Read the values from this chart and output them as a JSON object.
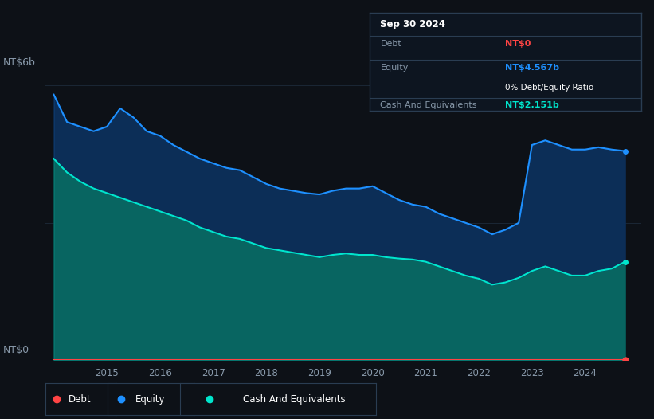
{
  "background_color": "#0d1117",
  "plot_bg_color": "#0d1117",
  "equity_color": "#1e90ff",
  "cash_color": "#00e5cc",
  "debt_color": "#ff4444",
  "grid_color": "#1e2d3d",
  "x_ticks": [
    2015,
    2016,
    2017,
    2018,
    2019,
    2020,
    2021,
    2022,
    2023,
    2024
  ],
  "years": [
    2014.0,
    2014.25,
    2014.5,
    2014.75,
    2015.0,
    2015.25,
    2015.5,
    2015.75,
    2016.0,
    2016.25,
    2016.5,
    2016.75,
    2017.0,
    2017.25,
    2017.5,
    2017.75,
    2018.0,
    2018.25,
    2018.5,
    2018.75,
    2019.0,
    2019.25,
    2019.5,
    2019.75,
    2020.0,
    2020.25,
    2020.5,
    2020.75,
    2021.0,
    2021.25,
    2021.5,
    2021.75,
    2022.0,
    2022.25,
    2022.5,
    2022.75,
    2023.0,
    2023.25,
    2023.5,
    2023.75,
    2024.0,
    2024.25,
    2024.5,
    2024.75
  ],
  "equity": [
    5.8,
    5.2,
    5.1,
    5.0,
    5.1,
    5.5,
    5.3,
    5.0,
    4.9,
    4.7,
    4.55,
    4.4,
    4.3,
    4.2,
    4.15,
    4.0,
    3.85,
    3.75,
    3.7,
    3.65,
    3.62,
    3.7,
    3.75,
    3.75,
    3.8,
    3.65,
    3.5,
    3.4,
    3.35,
    3.2,
    3.1,
    3.0,
    2.9,
    2.75,
    2.85,
    3.0,
    4.7,
    4.8,
    4.7,
    4.6,
    4.6,
    4.65,
    4.6,
    4.567
  ],
  "cash": [
    4.4,
    4.1,
    3.9,
    3.75,
    3.65,
    3.55,
    3.45,
    3.35,
    3.25,
    3.15,
    3.05,
    2.9,
    2.8,
    2.7,
    2.65,
    2.55,
    2.45,
    2.4,
    2.35,
    2.3,
    2.25,
    2.3,
    2.33,
    2.3,
    2.3,
    2.25,
    2.22,
    2.2,
    2.15,
    2.05,
    1.95,
    1.85,
    1.78,
    1.65,
    1.7,
    1.8,
    1.95,
    2.05,
    1.95,
    1.85,
    1.85,
    1.95,
    2.0,
    2.151
  ],
  "debt": [
    0.0,
    0.0,
    0.0,
    0.0,
    0.0,
    0.0,
    0.0,
    0.0,
    0.0,
    0.0,
    0.0,
    0.0,
    0.0,
    0.0,
    0.0,
    0.0,
    0.0,
    0.0,
    0.0,
    0.0,
    0.0,
    0.0,
    0.0,
    0.0,
    0.0,
    0.0,
    0.0,
    0.0,
    0.0,
    0.0,
    0.0,
    0.0,
    0.0,
    0.0,
    0.0,
    0.0,
    0.0,
    0.0,
    0.0,
    0.0,
    0.0,
    0.0,
    0.0,
    0.0
  ],
  "ylim": [
    0,
    6.4
  ],
  "xlim_start": 2013.85,
  "xlim_end": 2025.05,
  "tooltip": {
    "date": "Sep 30 2024",
    "debt_label": "Debt",
    "debt_value": "NT$0",
    "equity_label": "Equity",
    "equity_value": "NT$4.567b",
    "ratio_value": "0% Debt/Equity Ratio",
    "cash_label": "Cash And Equivalents",
    "cash_value": "NT$2.151b"
  }
}
